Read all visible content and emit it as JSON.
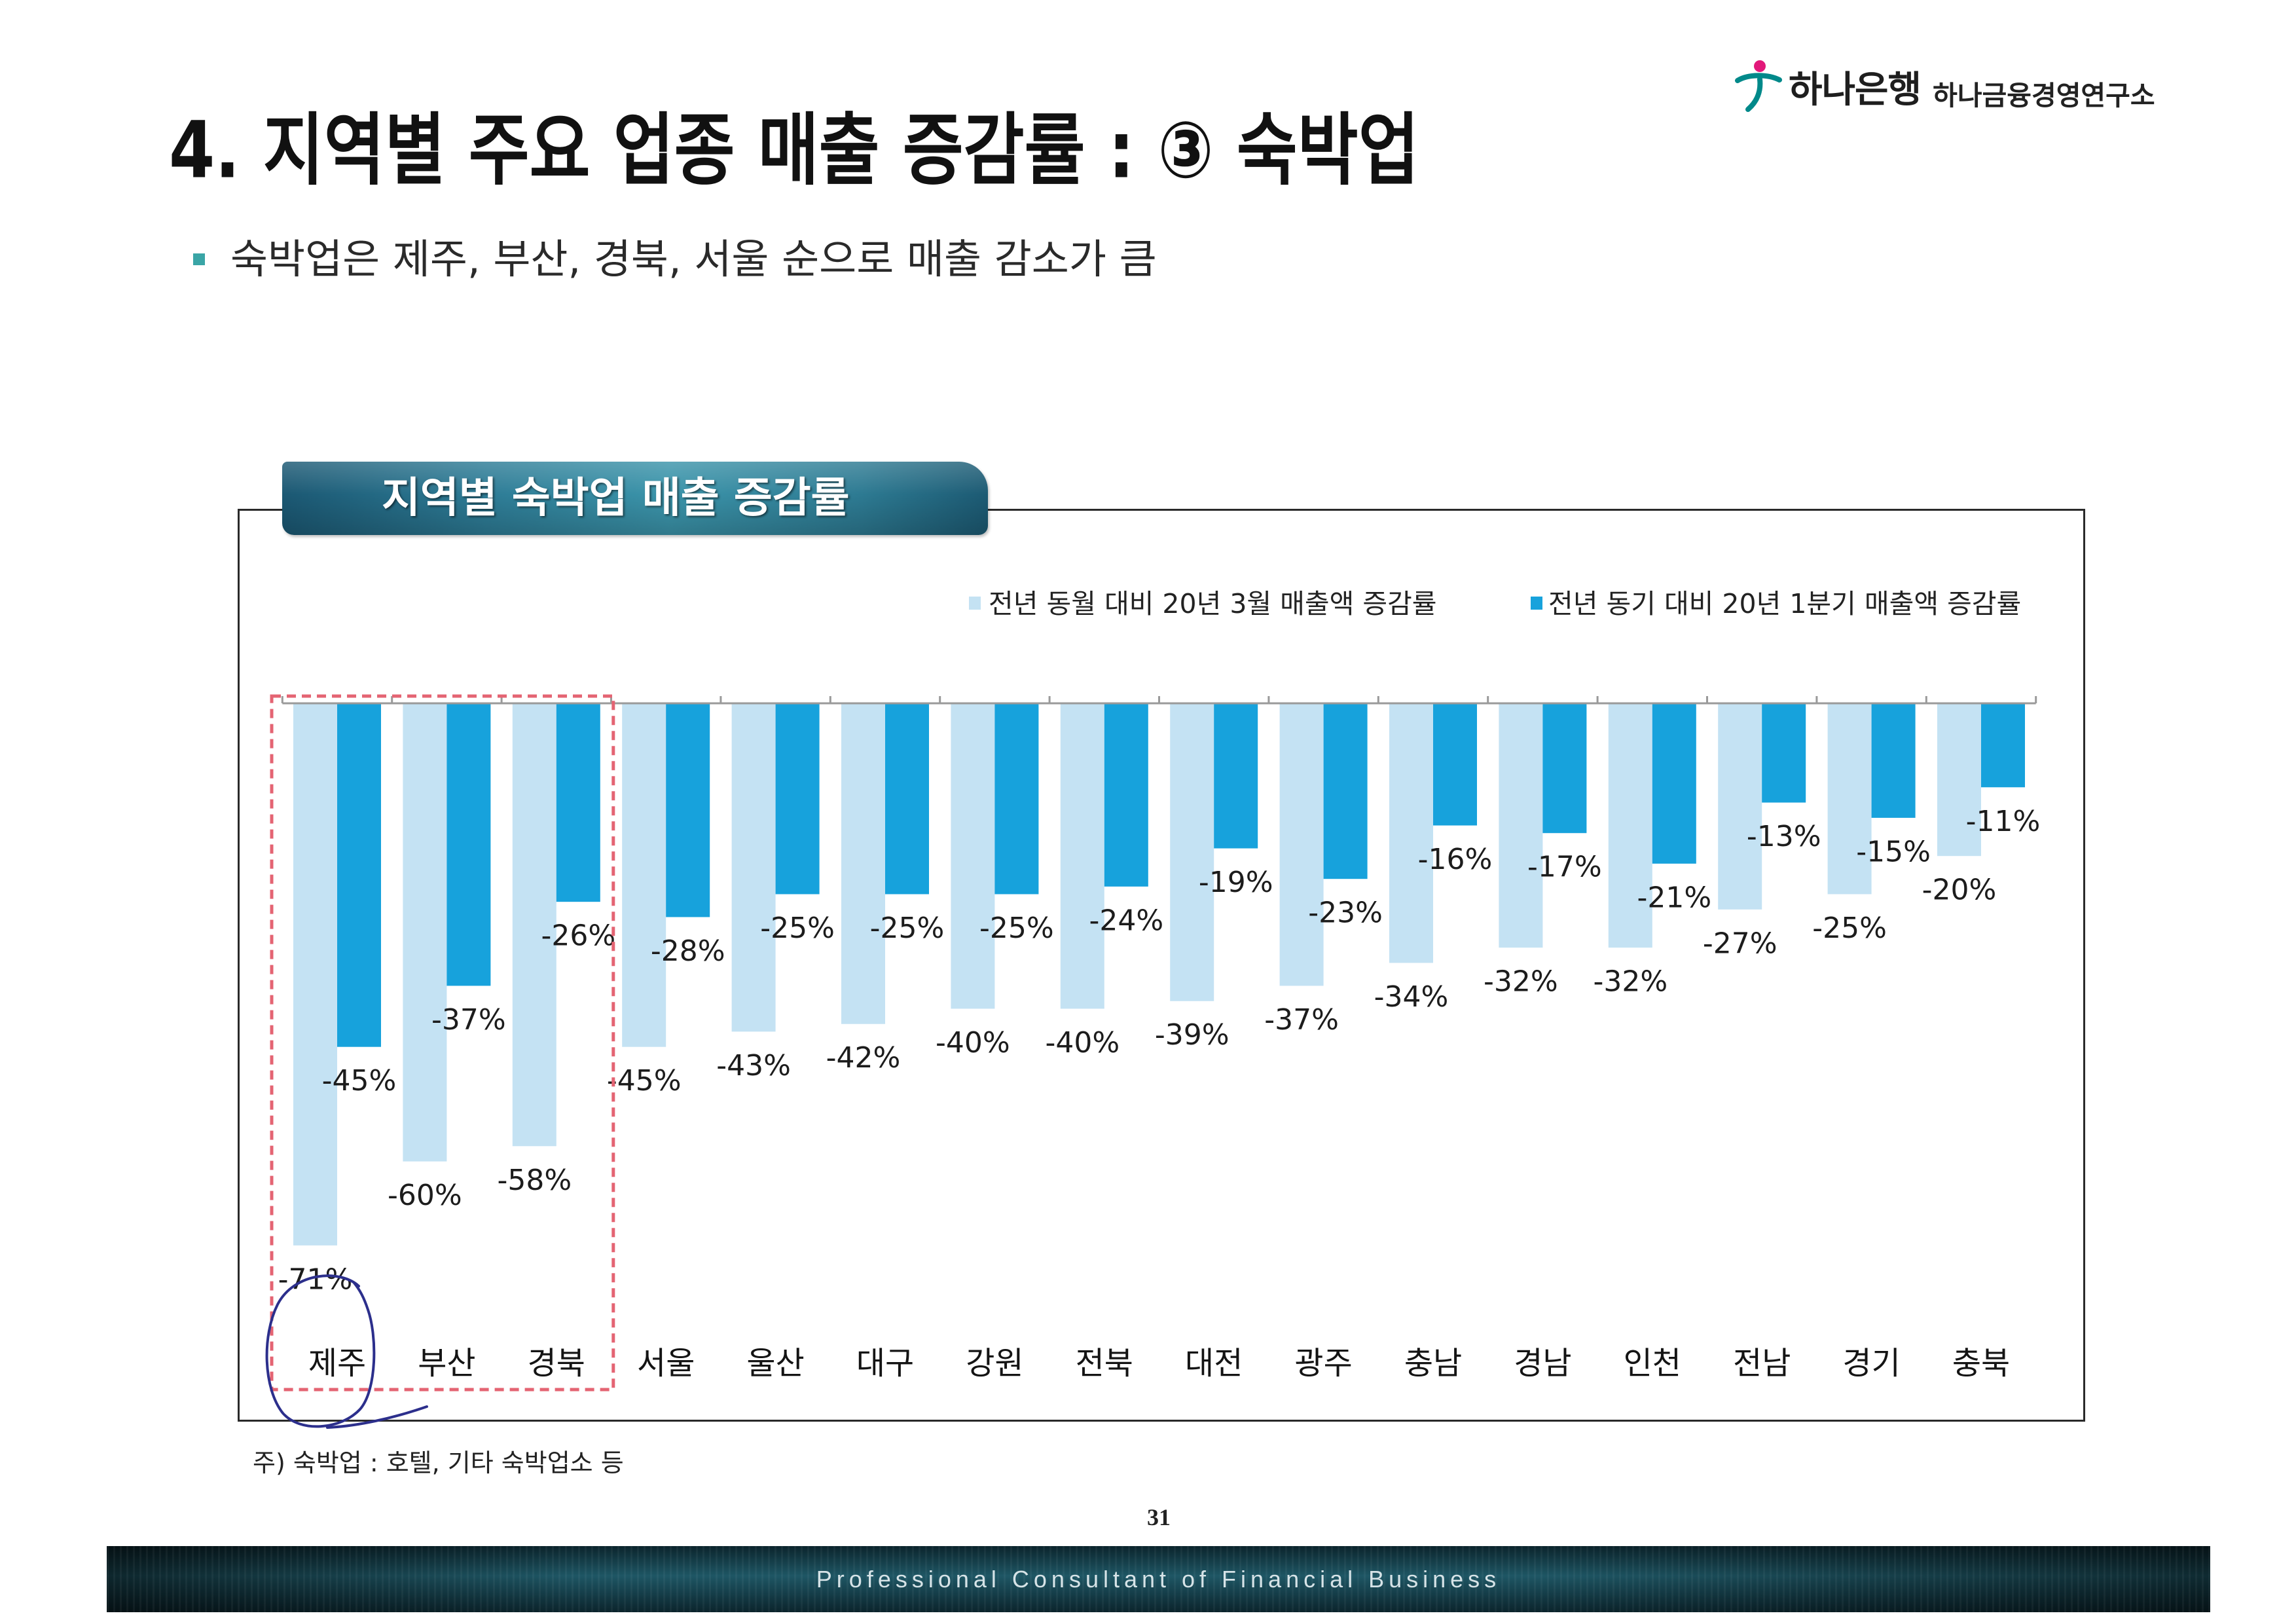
{
  "header": {
    "logo_icon": "hana-bank-logo-icon",
    "logo_brand": "하나은행",
    "logo_institute": "하나금융경영연구소",
    "title": "4. 지역별 주요 업종 매출 증감률 : ③ 숙박업",
    "bullet": "숙박업은 제주, 부산, 경북, 서울 순으로 매출 감소가 큼"
  },
  "chart_data": {
    "type": "bar",
    "title": "지역별 숙박업 매출 증감률",
    "categories": [
      "제주",
      "부산",
      "경북",
      "서울",
      "울산",
      "대구",
      "강원",
      "전북",
      "대전",
      "광주",
      "충남",
      "경남",
      "인천",
      "전남",
      "경기",
      "충북"
    ],
    "series": [
      {
        "name": "전년 동월 대비 20년 3월 매출액 증감률",
        "color": "#c4e2f3",
        "values": [
          -71,
          -60,
          -58,
          -45,
          -43,
          -42,
          -40,
          -40,
          -39,
          -37,
          -34,
          -32,
          -32,
          -27,
          -25,
          -20
        ]
      },
      {
        "name": "전년 동기 대비 20년 1분기 매출액 증감률",
        "color": "#17a2dc",
        "values": [
          -45,
          -37,
          -26,
          -28,
          -25,
          -25,
          -25,
          -24,
          -19,
          -23,
          -16,
          -17,
          -21,
          -13,
          -15,
          -11
        ]
      }
    ],
    "unit": "%",
    "legend": "top-right",
    "grid": false,
    "highlight_first_n": 3
  },
  "footnote": "주) 숙박업 : 호텔, 기타 숙박업소 등",
  "page_number": "31",
  "footer": {
    "tagline": "Professional Consultant of Financial Business"
  },
  "colors": {
    "brand_teal": "#00898a",
    "brand_pink": "#e2187a",
    "bullet": "#3aa5a6",
    "highlight_box": "#e46473",
    "annotation_ink": "#2c2f8c"
  }
}
